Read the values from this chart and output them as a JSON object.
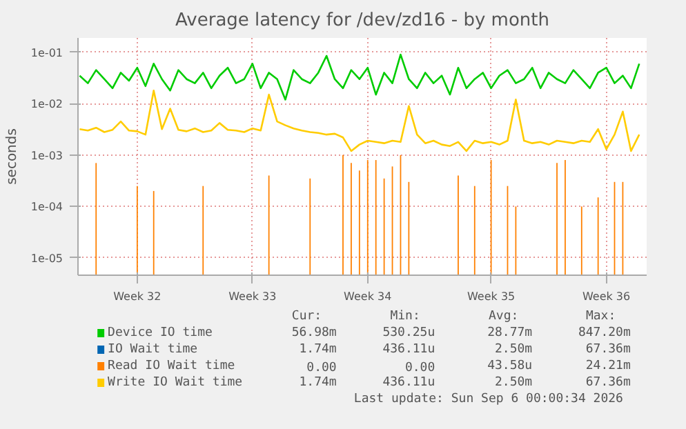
{
  "chart_data": {
    "type": "line",
    "title": "Average latency for /dev/zd16 - by month",
    "ylabel": "seconds",
    "log": "y",
    "categories": [
      null,
      null,
      null,
      null,
      null,
      null,
      null,
      "Week 32",
      null,
      null,
      null,
      null,
      null,
      null,
      null,
      null,
      null,
      null,
      null,
      null,
      null,
      "Week 33",
      null,
      null,
      null,
      null,
      null,
      null,
      null,
      null,
      null,
      null,
      null,
      null,
      null,
      "Week 34",
      null,
      null,
      null,
      null,
      null,
      null,
      null,
      null,
      null,
      null,
      null,
      null,
      null,
      null,
      "Week 35",
      null,
      null,
      null,
      null,
      null,
      null,
      null,
      null,
      null,
      null,
      null,
      null,
      null,
      "Week 36",
      null,
      null,
      null,
      null
    ],
    "ylim": [
      4.6e-06,
      0.19
    ],
    "yticks": [
      {
        "value": 1e-05,
        "label": "1e-05"
      },
      {
        "value": 0.0001,
        "label": "1e-04"
      },
      {
        "value": 0.001,
        "label": "1e-03"
      },
      {
        "value": 0.01,
        "label": "1e-02"
      },
      {
        "value": 0.1,
        "label": "1e-01"
      }
    ],
    "grid": true,
    "legend": "bottom",
    "marker": "none",
    "line_style": "solid",
    "series": [
      {
        "name": "Device IO time",
        "color": "#00cc00",
        "values": [
          0.035,
          0.025,
          0.045,
          0.03,
          0.02,
          0.04,
          0.028,
          0.05,
          0.022,
          0.06,
          0.03,
          0.018,
          0.045,
          0.03,
          0.025,
          0.04,
          0.02,
          0.035,
          0.05,
          0.025,
          0.03,
          0.06,
          0.02,
          0.04,
          0.03,
          0.012,
          0.045,
          0.03,
          0.025,
          0.04,
          0.085,
          0.03,
          0.02,
          0.045,
          0.03,
          0.05,
          0.015,
          0.04,
          0.025,
          0.09,
          0.03,
          0.02,
          0.04,
          0.025,
          0.035,
          0.015,
          0.05,
          0.02,
          0.03,
          0.04,
          0.02,
          0.035,
          0.045,
          0.025,
          0.03,
          0.05,
          0.02,
          0.04,
          0.03,
          0.025,
          0.045,
          0.03,
          0.02,
          0.04,
          0.05,
          0.025,
          0.035,
          0.02,
          0.06
        ]
      },
      {
        "name": "IO Wait time",
        "color": "#0066b3",
        "values": [
          null,
          null,
          null,
          null,
          null,
          null,
          null,
          null,
          null,
          null,
          null,
          null,
          null,
          null,
          null,
          null,
          null,
          null,
          null,
          null,
          null,
          null,
          null,
          null,
          null,
          null,
          null,
          null,
          null,
          null,
          null,
          null,
          null,
          null,
          null,
          null,
          null,
          null,
          null,
          null,
          null,
          null,
          null,
          null,
          null,
          null,
          null,
          null,
          null,
          null,
          null,
          null,
          null,
          null,
          null,
          null,
          null,
          null,
          null,
          null,
          null,
          null,
          null,
          null,
          null,
          null,
          null,
          null,
          null
        ]
      },
      {
        "name": "Read IO Wait time",
        "color": "#ff8000",
        "type": "bar",
        "values": [
          null,
          null,
          0.0007,
          null,
          null,
          null,
          null,
          0.00025,
          null,
          0.0002,
          null,
          null,
          null,
          null,
          null,
          0.00025,
          null,
          null,
          null,
          null,
          null,
          null,
          null,
          0.0004,
          null,
          null,
          null,
          null,
          0.00035,
          null,
          null,
          null,
          0.001,
          0.0007,
          0.0005,
          0.0008,
          0.0008,
          0.00035,
          0.0006,
          0.001,
          0.0003,
          null,
          null,
          null,
          null,
          null,
          0.0004,
          null,
          0.00025,
          null,
          0.0008,
          null,
          0.00025,
          0.0001,
          null,
          null,
          null,
          null,
          0.0007,
          0.0008,
          null,
          0.0001,
          null,
          0.00015,
          null,
          0.0003,
          0.0003,
          null,
          null
        ]
      },
      {
        "name": "Write IO Wait time",
        "color": "#ffcc00",
        "values": [
          0.0032,
          0.003,
          0.0034,
          0.0028,
          0.0031,
          0.0045,
          0.003,
          0.0029,
          0.0025,
          0.018,
          0.0032,
          0.008,
          0.0031,
          0.0029,
          0.0033,
          0.0028,
          0.003,
          0.0042,
          0.0031,
          0.003,
          0.0028,
          0.0033,
          0.003,
          0.015,
          0.0045,
          0.0038,
          0.0033,
          0.003,
          0.0028,
          0.0027,
          0.0025,
          0.0026,
          0.0022,
          0.0012,
          0.0016,
          0.0019,
          0.0018,
          0.0017,
          0.0019,
          0.0018,
          0.009,
          0.0025,
          0.0017,
          0.0019,
          0.0016,
          0.0015,
          0.0018,
          0.0012,
          0.0019,
          0.0017,
          0.0018,
          0.0016,
          0.0019,
          0.012,
          0.0019,
          0.0017,
          0.0018,
          0.0016,
          0.0019,
          0.0018,
          0.0017,
          0.0019,
          0.0018,
          0.0032,
          0.0013,
          0.0025,
          0.007,
          0.0012,
          0.0025
        ]
      }
    ],
    "annotations": [
      "Cur:",
      "Min:",
      "Avg:",
      "Max:",
      "56.98m",
      "530.25u",
      "28.77m",
      "847.20m",
      "1.74m",
      "436.11u",
      "2.50m",
      "67.36m",
      "0.00",
      "0.00",
      "43.58u",
      "24.21m",
      "1.74m",
      "436.11u",
      "2.50m",
      "67.36m",
      "Last update: Sun Sep  6 00:00:34 2026"
    ]
  }
}
